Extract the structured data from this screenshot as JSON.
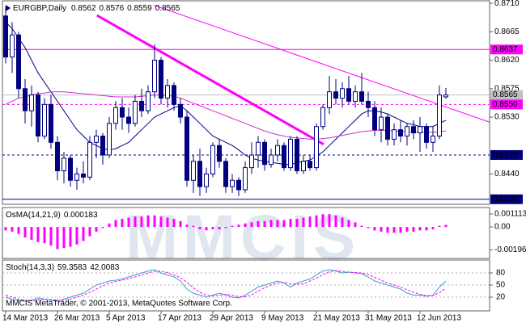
{
  "chart_data": {
    "type": "candlestick",
    "title": "EURGBP,Daily",
    "watermark": "MMCIS",
    "footer": "MMCIS MetaTrader, © 2001-2013, MetaQuotes Software Corp.",
    "ylim": [
      0.8392,
      0.8714
    ],
    "yticks": [
      {
        "value": 0.871,
        "label": "0.8710"
      },
      0.8665,
      {
        "value": 0.862,
        "label": "0.8620"
      },
      0.8575,
      {
        "value": 0.853,
        "label": "0.8530"
      },
      {
        "value": 0.844,
        "label": "0.8440"
      }
    ],
    "xlim": [
      -0.5,
      74.75
    ],
    "xticks": [
      {
        "value": 0,
        "label": "14 Mar 2013"
      },
      {
        "value": 8,
        "label": "26 Mar 2013"
      },
      {
        "value": 16,
        "label": "5 Apr 2013"
      },
      {
        "value": 24,
        "label": "17 Apr 2013"
      },
      {
        "value": 32,
        "label": "29 Apr 2013"
      },
      {
        "value": 40,
        "label": "9 May 2013"
      },
      {
        "value": 48,
        "label": "21 May 2013"
      },
      {
        "value": 56,
        "label": "31 May 2013"
      },
      {
        "value": 64,
        "label": "12 Jun 2013"
      }
    ],
    "bull_color": "#ffffff",
    "bear_color": "#000080",
    "candle_edge": "#000080",
    "candles": [
      [
        0.869,
        0.8705,
        0.8615,
        0.8625
      ],
      [
        0.8625,
        0.868,
        0.86,
        0.866
      ],
      [
        0.866,
        0.8665,
        0.856,
        0.8575
      ],
      [
        0.8575,
        0.859,
        0.852,
        0.854
      ],
      [
        0.854,
        0.858,
        0.8515,
        0.8565
      ],
      [
        0.8565,
        0.857,
        0.849,
        0.85
      ],
      [
        0.85,
        0.856,
        0.8495,
        0.855
      ],
      [
        0.855,
        0.8565,
        0.848,
        0.849
      ],
      [
        0.849,
        0.85,
        0.843,
        0.8445
      ],
      [
        0.8445,
        0.8475,
        0.8425,
        0.8465
      ],
      [
        0.8465,
        0.847,
        0.842,
        0.843
      ],
      [
        0.843,
        0.845,
        0.8415,
        0.844
      ],
      [
        0.844,
        0.846,
        0.8425,
        0.8435
      ],
      [
        0.8435,
        0.85,
        0.843,
        0.849
      ],
      [
        0.849,
        0.851,
        0.8465,
        0.85
      ],
      [
        0.85,
        0.8505,
        0.8455,
        0.847
      ],
      [
        0.847,
        0.853,
        0.8465,
        0.852
      ],
      [
        0.852,
        0.8555,
        0.851,
        0.8545
      ],
      [
        0.8545,
        0.856,
        0.851,
        0.853
      ],
      [
        0.853,
        0.8545,
        0.8505,
        0.852
      ],
      [
        0.852,
        0.8565,
        0.8515,
        0.8555
      ],
      [
        0.8555,
        0.8575,
        0.853,
        0.854
      ],
      [
        0.854,
        0.858,
        0.8535,
        0.857
      ],
      [
        0.857,
        0.8645,
        0.856,
        0.862
      ],
      [
        0.862,
        0.8625,
        0.855,
        0.856
      ],
      [
        0.856,
        0.859,
        0.8545,
        0.858
      ],
      [
        0.858,
        0.8585,
        0.854,
        0.855
      ],
      [
        0.855,
        0.856,
        0.852,
        0.853
      ],
      [
        0.853,
        0.854,
        0.842,
        0.843
      ],
      [
        0.843,
        0.847,
        0.841,
        0.846
      ],
      [
        0.846,
        0.848,
        0.8405,
        0.842
      ],
      [
        0.842,
        0.845,
        0.841,
        0.844
      ],
      [
        0.844,
        0.849,
        0.8435,
        0.8485
      ],
      [
        0.8485,
        0.8495,
        0.845,
        0.846
      ],
      [
        0.846,
        0.8465,
        0.841,
        0.842
      ],
      [
        0.842,
        0.844,
        0.841,
        0.843
      ],
      [
        0.843,
        0.8435,
        0.8405,
        0.8415
      ],
      [
        0.8415,
        0.846,
        0.841,
        0.845
      ],
      [
        0.845,
        0.849,
        0.844,
        0.847
      ],
      [
        0.847,
        0.85,
        0.845,
        0.849
      ],
      [
        0.849,
        0.8495,
        0.8445,
        0.8455
      ],
      [
        0.8455,
        0.848,
        0.845,
        0.847
      ],
      [
        0.847,
        0.8495,
        0.846,
        0.8485
      ],
      [
        0.8485,
        0.849,
        0.8445,
        0.845
      ],
      [
        0.845,
        0.85,
        0.8445,
        0.8495
      ],
      [
        0.8495,
        0.85,
        0.844,
        0.8445
      ],
      [
        0.8445,
        0.847,
        0.844,
        0.846
      ],
      [
        0.846,
        0.847,
        0.8445,
        0.845
      ],
      [
        0.845,
        0.852,
        0.8445,
        0.8515
      ],
      [
        0.8515,
        0.855,
        0.851,
        0.8545
      ],
      [
        0.8545,
        0.8595,
        0.8535,
        0.857
      ],
      [
        0.857,
        0.859,
        0.855,
        0.856
      ],
      [
        0.856,
        0.8585,
        0.8545,
        0.8575
      ],
      [
        0.8575,
        0.8595,
        0.855,
        0.8555
      ],
      [
        0.8555,
        0.858,
        0.8545,
        0.857
      ],
      [
        0.857,
        0.86,
        0.855,
        0.8555
      ],
      [
        0.8555,
        0.857,
        0.853,
        0.8545
      ],
      [
        0.8545,
        0.8555,
        0.85,
        0.851
      ],
      [
        0.851,
        0.8545,
        0.849,
        0.853
      ],
      [
        0.853,
        0.8535,
        0.8485,
        0.8495
      ],
      [
        0.8495,
        0.852,
        0.8485,
        0.851
      ],
      [
        0.851,
        0.8525,
        0.849,
        0.85
      ],
      [
        0.85,
        0.852,
        0.8485,
        0.8515
      ],
      [
        0.8515,
        0.8525,
        0.8495,
        0.8505
      ],
      [
        0.8505,
        0.853,
        0.8475,
        0.8515
      ],
      [
        0.8515,
        0.852,
        0.848,
        0.849
      ],
      [
        0.849,
        0.8515,
        0.8475,
        0.85
      ],
      [
        0.85,
        0.858,
        0.8495,
        0.8565
      ],
      [
        0.8562,
        0.8576,
        0.8559,
        0.8565
      ]
    ],
    "series": [
      {
        "color": "#000080",
        "values": [
          0.868,
          0.867,
          0.8655,
          0.864,
          0.862,
          0.86,
          0.8585,
          0.857,
          0.8555,
          0.854,
          0.8525,
          0.851,
          0.85,
          0.849,
          0.8485,
          0.848,
          0.8478,
          0.848,
          0.8485,
          0.849,
          0.85,
          0.851,
          0.852,
          0.853,
          0.8535,
          0.854,
          0.8545,
          0.8548,
          0.854,
          0.853,
          0.852,
          0.851,
          0.85,
          0.8495,
          0.849,
          0.8485,
          0.8478,
          0.847,
          0.8465,
          0.8462,
          0.846,
          0.8458,
          0.8457,
          0.8455,
          0.8455,
          0.8458,
          0.846,
          0.8462,
          0.8468,
          0.8475,
          0.8485,
          0.8495,
          0.8505,
          0.8515,
          0.8525,
          0.8535,
          0.854,
          0.854,
          0.8538,
          0.8535,
          0.853,
          0.8525,
          0.852,
          0.8518,
          0.8515,
          0.8515,
          0.8515,
          0.852,
          0.8525
        ]
      },
      {
        "color": "#cc33cc",
        "values": [
          0.855,
          0.8555,
          0.856,
          0.8562,
          0.8565,
          0.8567,
          0.8568,
          0.857,
          0.857,
          0.857,
          0.8569,
          0.8568,
          0.8567,
          0.8566,
          0.8565,
          0.8564,
          0.8563,
          0.8562,
          0.8562,
          0.8562,
          0.8562,
          0.8563,
          0.8564,
          0.8565,
          0.8565,
          0.8564,
          0.8563,
          0.856,
          0.8556,
          0.8552,
          0.8548,
          0.8544,
          0.854,
          0.8536,
          0.8532,
          0.8528,
          0.8524,
          0.852,
          0.8516,
          0.8512,
          0.8508,
          0.8505,
          0.8502,
          0.85,
          0.8498,
          0.8497,
          0.8496,
          0.8495,
          0.8495,
          0.8496,
          0.8497,
          0.8499,
          0.8501,
          0.8503,
          0.8505,
          0.8507,
          0.8508,
          0.8509,
          0.8509,
          0.8509,
          0.8508,
          0.8508,
          0.8507,
          0.8507,
          0.8506,
          0.8506,
          0.8506,
          0.8507,
          0.8508
        ]
      }
    ],
    "levels": [
      {
        "price": 0.8637,
        "color": "#ff00ff",
        "text_color": "#ffffff",
        "dashed": false
      },
      {
        "price": 0.8565,
        "color": "#c0c0c0",
        "text_color": "#000000",
        "dashed": false
      },
      {
        "price": {
          "value": 0.855,
          "label": "0.8550"
        },
        "color": "#ff00ff",
        "text_color": "#ffffff",
        "dashed": true
      },
      {
        "price": {
          "value": 0.847,
          "label": "0.8470"
        },
        "color": "#000080",
        "text_color": "#ffffff",
        "dashed": true
      },
      {
        "price": {
          "value": 0.84,
          "label": "0.8400"
        },
        "color": "#000080",
        "text_color": "#ffffff",
        "dashed": false
      }
    ],
    "trendlines": [
      {
        "color": "#ff00ff",
        "width": 1,
        "points": [
          [
            22.9,
            0.8707
          ],
          [
            74.75,
            0.8522
          ]
        ]
      },
      {
        "color": "#ff00ff",
        "width": 3,
        "points": [
          [
            14.1,
            0.8691
          ],
          [
            49.1,
            0.8487
          ]
        ]
      }
    ],
    "osma": {
      "title": "OsMA(14,21,9)",
      "color": "#ff00ff",
      "ylim": [
        -0.0027,
        0.00167
      ],
      "yticks": [
        0.001113,
        {
          "value": 0,
          "label": "0.00"
        },
        -0.00196
      ],
      "values": [
        -0.0003,
        -0.0004,
        -0.0006,
        -0.0009,
        -0.0011,
        -0.0013,
        -0.0014,
        -0.0016,
        -0.0019,
        -0.0018,
        -0.0017,
        -0.0015,
        -0.0012,
        -0.0008,
        -0.0004,
        -0.0001,
        0.0003,
        0.0006,
        0.0007,
        0.0008,
        0.0009,
        0.0009,
        0.001,
        0.001,
        0.0009,
        0.0008,
        0.0007,
        0.0005,
        0.0002,
        0.0001,
        -0.0002,
        -0.0003,
        -0.0002,
        -0.0002,
        -0.0001,
        0.0001,
        0.0002,
        0.0003,
        0.0004,
        0.0005,
        0.0005,
        0.0006,
        0.0006,
        0.0006,
        0.0007,
        0.0007,
        0.0008,
        0.0009,
        0.001,
        0.0011,
        0.0011,
        0.001,
        0.0008,
        0.0006,
        0.0004,
        0.0001,
        -0.0001,
        -0.0003,
        -0.0004,
        -0.0005,
        -0.0005,
        -0.0005,
        -0.0004,
        -0.0004,
        -0.0003,
        -0.0003,
        -0.0002,
        0.0001,
        0.000183
      ]
    },
    "stoch": {
      "title": "Stoch(14,3,3)",
      "ylim": [
        -14,
        112
      ],
      "yticks": [
        80,
        50,
        20
      ],
      "series": [
        {
          "color": "#3a9ec8",
          "dashed": false,
          "values": [
            20,
            15,
            12,
            10,
            12,
            18,
            15,
            12,
            10,
            15,
            20,
            25,
            30,
            40,
            50,
            55,
            60,
            62,
            65,
            70,
            75,
            80,
            85,
            88,
            80,
            75,
            70,
            60,
            40,
            30,
            25,
            20,
            25,
            30,
            25,
            20,
            18,
            25,
            35,
            45,
            50,
            55,
            60,
            55,
            45,
            55,
            60,
            65,
            75,
            85,
            88,
            85,
            80,
            82,
            80,
            78,
            70,
            60,
            55,
            50,
            45,
            40,
            30,
            25,
            25,
            22,
            25,
            45,
            59.3583
          ]
        },
        {
          "color": "#ff00ff",
          "dashed": true,
          "values": [
            25,
            20,
            15,
            12,
            11,
            13,
            15,
            14,
            12,
            12,
            15,
            20,
            25,
            32,
            40,
            48,
            55,
            59,
            62,
            66,
            70,
            75,
            80,
            84,
            84,
            81,
            75,
            68,
            57,
            43,
            32,
            25,
            23,
            25,
            27,
            25,
            21,
            21,
            26,
            35,
            43,
            50,
            55,
            57,
            53,
            52,
            53,
            60,
            67,
            75,
            83,
            86,
            84,
            82,
            81,
            80,
            76,
            69,
            62,
            55,
            50,
            45,
            38,
            32,
            27,
            24,
            24,
            31,
            42.0083
          ]
        }
      ]
    }
  }
}
